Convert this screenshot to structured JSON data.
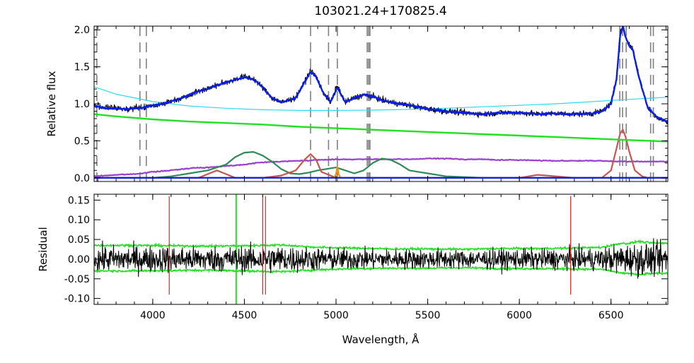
{
  "chart_data": {
    "type": "line",
    "title": "103021.24+170825.4",
    "xlabel": "Wavelength, Å",
    "xlim": [
      3680,
      6810
    ],
    "xticks": [
      "4000",
      "4500",
      "5000",
      "5500",
      "6000",
      "6500"
    ],
    "panels": [
      {
        "name": "spectrum",
        "ylabel": "Relative flux",
        "ylim": [
          -0.05,
          2.05
        ],
        "yticks": [
          "0.0",
          "0.5",
          "1.0",
          "1.5",
          "2.0"
        ],
        "line_markers_x": [
          3695,
          3930,
          3965,
          4861,
          4959,
          5007,
          5170,
          5178,
          5185,
          6548,
          6563,
          6583,
          6716,
          6731
        ],
        "series": [
          {
            "role": "observed",
            "color": "#000000",
            "x": [
              3680,
              3750,
              3850,
              3950,
              4050,
              4150,
              4250,
              4350,
              4450,
              4500,
              4550,
              4600,
              4650,
              4700,
              4780,
              4830,
              4861,
              4890,
              4930,
              4970,
              5007,
              5050,
              5100,
              5150,
              5200,
              5250,
              5300,
              5400,
              5500,
              5600,
              5700,
              5800,
              5900,
              6000,
              6100,
              6200,
              6300,
              6400,
              6450,
              6500,
              6530,
              6550,
              6565,
              6580,
              6600,
              6620,
              6650,
              6700,
              6750,
              6810
            ],
            "y": [
              0.98,
              0.95,
              0.93,
              0.95,
              1.0,
              1.07,
              1.17,
              1.25,
              1.33,
              1.37,
              1.34,
              1.22,
              1.08,
              1.02,
              1.08,
              1.3,
              1.45,
              1.38,
              1.15,
              1.02,
              1.25,
              1.02,
              1.08,
              1.12,
              1.1,
              1.05,
              1.02,
              0.98,
              0.93,
              0.9,
              0.88,
              0.86,
              0.88,
              0.88,
              0.86,
              0.87,
              0.86,
              0.87,
              0.9,
              1.0,
              1.35,
              1.95,
              2.05,
              1.9,
              1.8,
              1.75,
              1.4,
              0.95,
              0.82,
              0.75
            ]
          },
          {
            "role": "model",
            "color": "#0a1ee6",
            "x": [
              3680,
              3750,
              3850,
              3950,
              4050,
              4150,
              4250,
              4350,
              4450,
              4500,
              4550,
              4600,
              4650,
              4700,
              4780,
              4830,
              4861,
              4890,
              4930,
              4970,
              5007,
              5050,
              5100,
              5150,
              5200,
              5250,
              5300,
              5400,
              5500,
              5600,
              5700,
              5800,
              5900,
              6000,
              6100,
              6200,
              6300,
              6400,
              6450,
              6500,
              6530,
              6550,
              6565,
              6580,
              6600,
              6620,
              6650,
              6700,
              6750,
              6810
            ],
            "y": [
              0.97,
              0.94,
              0.93,
              0.95,
              1.0,
              1.07,
              1.17,
              1.25,
              1.33,
              1.36,
              1.33,
              1.22,
              1.08,
              1.02,
              1.08,
              1.3,
              1.43,
              1.37,
              1.15,
              1.02,
              1.22,
              1.02,
              1.08,
              1.12,
              1.1,
              1.05,
              1.02,
              0.98,
              0.93,
              0.9,
              0.88,
              0.86,
              0.88,
              0.88,
              0.86,
              0.87,
              0.86,
              0.87,
              0.9,
              1.0,
              1.33,
              1.93,
              2.05,
              1.9,
              1.78,
              1.72,
              1.38,
              0.95,
              0.82,
              0.76
            ]
          },
          {
            "role": "power-law-continuum",
            "color": "#2bdcf0",
            "x": [
              3680,
              3800,
              4000,
              4200,
              4400,
              4600,
              4800,
              5000,
              5200,
              5400,
              5600,
              5800,
              6000,
              6200,
              6400,
              6600,
              6810
            ],
            "y": [
              1.23,
              1.13,
              1.03,
              0.97,
              0.94,
              0.92,
              0.91,
              0.91,
              0.915,
              0.925,
              0.94,
              0.96,
              0.98,
              1.0,
              1.03,
              1.06,
              1.09
            ]
          },
          {
            "role": "continuum-component",
            "color": "#22e022",
            "x": [
              3680,
              3800,
              4000,
              4200,
              4400,
              4600,
              4800,
              5000,
              5200,
              5400,
              5600,
              5800,
              6000,
              6200,
              6400,
              6600,
              6810
            ],
            "y": [
              0.86,
              0.83,
              0.79,
              0.76,
              0.74,
              0.72,
              0.69,
              0.67,
              0.65,
              0.63,
              0.61,
              0.59,
              0.57,
              0.55,
              0.53,
              0.51,
              0.49
            ]
          },
          {
            "role": "stellar-component",
            "color": "#9b3fcf",
            "x": [
              3680,
              3800,
              3900,
              4000,
              4100,
              4200,
              4300,
              4400,
              4500,
              4600,
              4700,
              4800,
              4900,
              5000,
              5100,
              5200,
              5300,
              5400,
              5500,
              5600,
              5700,
              5800,
              5900,
              6000,
              6200,
              6400,
              6600,
              6810
            ],
            "y": [
              0.02,
              0.04,
              0.05,
              0.08,
              0.1,
              0.13,
              0.14,
              0.16,
              0.18,
              0.21,
              0.22,
              0.23,
              0.24,
              0.25,
              0.25,
              0.25,
              0.25,
              0.25,
              0.26,
              0.26,
              0.25,
              0.25,
              0.24,
              0.24,
              0.23,
              0.23,
              0.22,
              0.22
            ]
          },
          {
            "role": "fe-emission",
            "color": "#2e8b57",
            "x": [
              3680,
              4000,
              4100,
              4200,
              4300,
              4400,
              4450,
              4500,
              4550,
              4600,
              4650,
              4700,
              4750,
              4800,
              4850,
              4900,
              4950,
              5000,
              5050,
              5100,
              5150,
              5200,
              5250,
              5300,
              5350,
              5400,
              5450,
              5500,
              5550,
              5600,
              5700,
              5800,
              6810
            ],
            "y": [
              0,
              0,
              0.02,
              0.06,
              0.1,
              0.18,
              0.28,
              0.34,
              0.35,
              0.3,
              0.22,
              0.12,
              0.06,
              0.05,
              0.07,
              0.1,
              0.12,
              0.14,
              0.1,
              0.06,
              0.1,
              0.2,
              0.26,
              0.24,
              0.18,
              0.1,
              0.08,
              0.06,
              0.04,
              0.02,
              0.01,
              0,
              0
            ]
          },
          {
            "role": "broad-lines",
            "color": "#c8554d",
            "x": [
              3680,
              4250,
              4300,
              4350,
              4400,
              4450,
              4600,
              4700,
              4780,
              4830,
              4861,
              4890,
              4920,
              5000,
              5100,
              6000,
              6100,
              6300,
              6450,
              6500,
              6530,
              6550,
              6565,
              6580,
              6600,
              6630,
              6670,
              6700,
              6810
            ],
            "y": [
              0,
              0,
              0.05,
              0.1,
              0.05,
              0,
              0,
              0.03,
              0.1,
              0.25,
              0.32,
              0.25,
              0.08,
              0,
              0,
              0,
              0.04,
              0,
              0,
              0.1,
              0.4,
              0.6,
              0.65,
              0.55,
              0.35,
              0.1,
              0.02,
              0,
              0
            ]
          },
          {
            "role": "narrow-oiii",
            "color": "#ff8c00",
            "x": [
              4990,
              5000,
              5007,
              5014,
              5024
            ],
            "y": [
              0,
              0.05,
              0.15,
              0.05,
              0
            ]
          }
        ]
      },
      {
        "name": "residual",
        "ylabel": "Residual",
        "ylim": [
          -0.115,
          0.165
        ],
        "yticks": [
          "0.15",
          "0.10",
          "0.05",
          "0.00",
          "-0.05",
          "-0.10"
        ],
        "error_band": {
          "color": "#22e022",
          "x": [
            3680,
            3900,
            4100,
            4300,
            4500,
            4700,
            4900,
            5100,
            5300,
            5500,
            5700,
            5900,
            6100,
            6300,
            6450,
            6500,
            6550,
            6600,
            6650,
            6700,
            6810
          ],
          "upper": [
            0.035,
            0.035,
            0.034,
            0.033,
            0.034,
            0.036,
            0.03,
            0.028,
            0.026,
            0.026,
            0.025,
            0.027,
            0.027,
            0.028,
            0.03,
            0.035,
            0.04,
            0.04,
            0.045,
            0.042,
            0.04
          ],
          "lower": [
            -0.03,
            -0.03,
            -0.029,
            -0.028,
            -0.03,
            -0.032,
            -0.027,
            -0.024,
            -0.023,
            -0.023,
            -0.022,
            -0.024,
            -0.024,
            -0.025,
            -0.026,
            -0.03,
            -0.036,
            -0.036,
            -0.04,
            -0.037,
            -0.036
          ]
        }
      }
    ]
  }
}
